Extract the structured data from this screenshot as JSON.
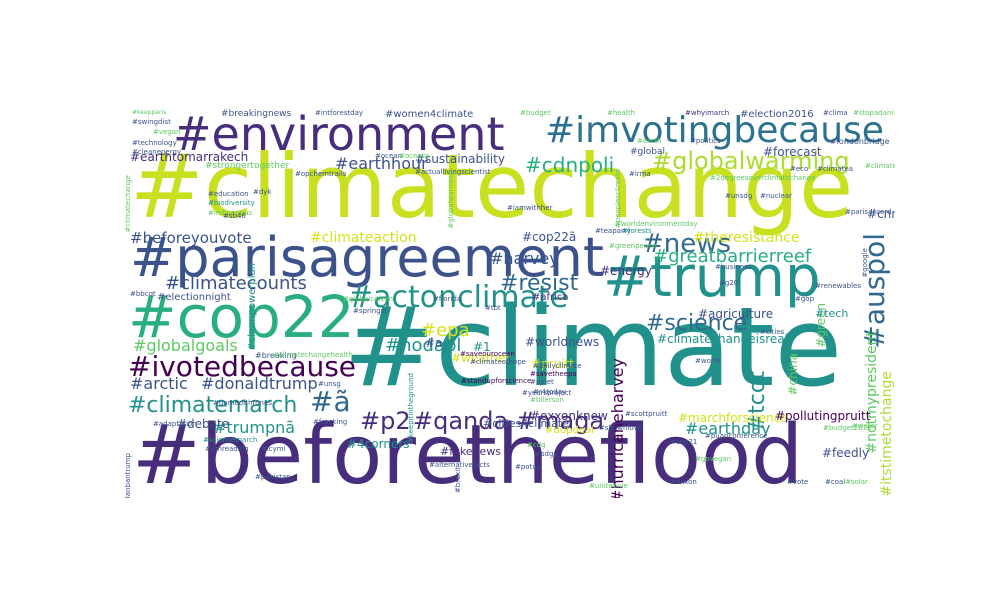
{
  "palette": {
    "purple": "#440154",
    "indigo": "#472d7b",
    "blue": "#3b528b",
    "steel": "#2c728e",
    "teal": "#21918c",
    "green": "#28ae80",
    "lime": "#5ec962",
    "yellowgreen": "#addc30",
    "yellow": "#d4e21a"
  },
  "words": [
    {
      "text": "#beforetheflood",
      "color": "#472d7b"
    },
    {
      "text": "#climate",
      "color": "#21918c"
    },
    {
      "text": "#climatechange",
      "color": "#c8e020"
    },
    {
      "text": "#parisagreement",
      "color": "#3b528b"
    },
    {
      "text": "#environment",
      "color": "#472d7b"
    },
    {
      "text": "#imvotingbecause",
      "color": "#2c728e"
    },
    {
      "text": "#trump",
      "color": "#21918c"
    },
    {
      "text": "#cop22",
      "color": "#28ae80"
    },
    {
      "text": "#globalwarming",
      "color": "#addc30"
    },
    {
      "text": "#actonclimate",
      "color": "#21918c"
    },
    {
      "text": "#ivotedbecause",
      "color": "#440154"
    },
    {
      "text": "#climatemarch",
      "color": "#21918c"
    },
    {
      "text": "#news",
      "color": "#31688e"
    },
    {
      "text": "#science",
      "color": "#31688e"
    },
    {
      "text": "#auspol",
      "color": "#31688e"
    },
    {
      "text": "#qanda",
      "color": "#472d7b"
    },
    {
      "text": "#maga",
      "color": "#472d7b"
    },
    {
      "text": "#p2",
      "color": "#472d7b"
    },
    {
      "text": "#tcot",
      "color": "#21918c"
    },
    {
      "text": "#ã",
      "color": "#31688e"
    },
    {
      "text": "#resist",
      "color": "#31688e"
    },
    {
      "text": "#climatecounts",
      "color": "#3b528b"
    },
    {
      "text": "#cdnpoli",
      "color": "#28ae80"
    },
    {
      "text": "#earthhour",
      "color": "#3b528b"
    },
    {
      "text": "#greatbarrierreef",
      "color": "#28ae80"
    },
    {
      "text": "#nodapl",
      "color": "#21918c"
    },
    {
      "text": "#globalgoals",
      "color": "#5ec962"
    },
    {
      "text": "#epa",
      "color": "#d4e21a"
    },
    {
      "text": "#earthday",
      "color": "#21918c"
    },
    {
      "text": "#hurricaneharvey",
      "color": "#440154"
    },
    {
      "text": "#arctic",
      "color": "#3b528b"
    },
    {
      "text": "#donaldtrump",
      "color": "#3b528b"
    },
    {
      "text": "#trumpnã",
      "color": "#21918c"
    },
    {
      "text": "#beforeyouvote",
      "color": "#3b528b"
    },
    {
      "text": "#climateaction",
      "color": "#d4e21a"
    },
    {
      "text": "#earthtomarrakech",
      "color": "#472d7b"
    },
    {
      "text": "#sustainability",
      "color": "#3b528b"
    },
    {
      "text": "#women4climate",
      "color": "#3b528b"
    },
    {
      "text": "#election2016",
      "color": "#3b528b"
    },
    {
      "text": "#harvey",
      "color": "#3b528b"
    },
    {
      "text": "#cop22ã",
      "color": "#3b528b"
    },
    {
      "text": "#energy",
      "color": "#472d7b"
    },
    {
      "text": "#theresistance",
      "color": "#d4e21a"
    },
    {
      "text": "#itstimetochange",
      "color": "#addc30"
    },
    {
      "text": "#notmypresident",
      "color": "#5ec962"
    },
    {
      "text": "#cnn",
      "color": "#3b528b"
    },
    {
      "text": "#forecast",
      "color": "#3b528b"
    },
    {
      "text": "#marchforscience",
      "color": "#d4e21a"
    },
    {
      "text": "#pollutingpruitt",
      "color": "#440154"
    },
    {
      "text": "#exxonknew",
      "color": "#472d7b"
    },
    {
      "text": "#climatechangeisreal",
      "color": "#21918c"
    },
    {
      "text": "#agriculture",
      "color": "#3b528b"
    },
    {
      "text": "#cities4climate",
      "color": "#3b528b"
    },
    {
      "text": "#worldnews",
      "color": "#3b528b"
    },
    {
      "text": "#fakenews",
      "color": "#472d7b"
    },
    {
      "text": "#4corners",
      "color": "#21918c"
    },
    {
      "text": "#feedly",
      "color": "#3b528b"
    },
    {
      "text": "#debate",
      "color": "#3b528b"
    },
    {
      "text": "#weather",
      "color": "#d4e21a"
    },
    {
      "text": "#china",
      "color": "#5ec962"
    },
    {
      "text": "#green",
      "color": "#5ec962"
    },
    {
      "text": "#breakingnews",
      "color": "#3b528b"
    },
    {
      "text": "#cleanpowerplan",
      "color": "#21918c"
    },
    {
      "text": "#strongertogether",
      "color": "#5ec962"
    },
    {
      "text": "#electionnight",
      "color": "#3b528b"
    },
    {
      "text": "#africa",
      "color": "#472d7b"
    },
    {
      "text": "#pruitt",
      "color": "#d4e21a"
    },
    {
      "text": "#tech",
      "color": "#21918c"
    },
    {
      "text": "#dupdeal",
      "color": "#d4e21a"
    },
    {
      "text": "#1",
      "color": "#21918c"
    },
    {
      "text": "#a",
      "color": "#3b528b"
    },
    {
      "text": "#intforestday",
      "color": "#3b528b"
    },
    {
      "text": "#whyimarch",
      "color": "#472d7b"
    },
    {
      "text": "#londonbridge",
      "color": "#3b528b"
    },
    {
      "text": "#clima",
      "color": "#3b528b"
    },
    {
      "text": "#stopadani",
      "color": "#5ec962"
    },
    {
      "text": "#keepparis",
      "color": "#5ec962"
    },
    {
      "text": "#swingdist",
      "color": "#3b528b"
    },
    {
      "text": "#vegan",
      "color": "#5ec962"
    },
    {
      "text": "#technology",
      "color": "#3b528b"
    },
    {
      "text": "#cleanenergy",
      "color": "#3b528b"
    },
    {
      "text": "#education",
      "color": "#3b528b"
    },
    {
      "text": "#biodiversity",
      "color": "#21918c"
    },
    {
      "text": "#indigenous",
      "color": "#5ec962"
    },
    {
      "text": "#sb46",
      "color": "#3b528b"
    },
    {
      "text": "#opchemtrails",
      "color": "#3b528b"
    },
    {
      "text": "#actuallivingscientist",
      "color": "#3b528b"
    },
    {
      "text": "#iamwithher",
      "color": "#3b528b"
    },
    {
      "text": "#savetheepa",
      "color": "#440154"
    },
    {
      "text": "#standupforscience",
      "color": "#440154"
    },
    {
      "text": "#climateofhope",
      "color": "#3b528b"
    },
    {
      "text": "#pjnet",
      "color": "#3b528b"
    },
    {
      "text": "#r4today",
      "color": "#3b528b"
    },
    {
      "text": "#tillerson",
      "color": "#5ec962"
    },
    {
      "text": "#dailyclimate",
      "color": "#3b528b"
    },
    {
      "text": "#saveourocean",
      "color": "#440154"
    },
    {
      "text": "#springst",
      "color": "#3b528b"
    },
    {
      "text": "#florida",
      "color": "#3b528b"
    },
    {
      "text": "#globalcitizen",
      "color": "#5ec962"
    },
    {
      "text": "#teaparty",
      "color": "#3b528b"
    },
    {
      "text": "#business",
      "color": "#3b528b"
    },
    {
      "text": "#worldenvironmentday",
      "color": "#5ec962"
    },
    {
      "text": "#gop",
      "color": "#3b528b"
    },
    {
      "text": "#cities",
      "color": "#3b528b"
    },
    {
      "text": "#scottpruitt",
      "color": "#3b528b"
    },
    {
      "text": "#cop21",
      "color": "#3b528b"
    },
    {
      "text": "#govegan",
      "color": "#5ec962"
    },
    {
      "text": "#exxon",
      "color": "#3b528b"
    },
    {
      "text": "#unitebiue",
      "color": "#5ec962"
    },
    {
      "text": "#potus",
      "color": "#3b528b"
    },
    {
      "text": "#sdgs",
      "color": "#3b528b"
    },
    {
      "text": "#cdg",
      "color": "#5ec962"
    },
    {
      "text": "#shownlove",
      "color": "#3b528b"
    },
    {
      "text": "#puanconference",
      "color": "#3b528b"
    },
    {
      "text": "#budget2018",
      "color": "#5ec962"
    },
    {
      "text": "#gameofthrones",
      "color": "#3b528b"
    },
    {
      "text": "#sciencemarch",
      "color": "#21918c"
    },
    {
      "text": "#adaptation",
      "color": "#3b528b"
    },
    {
      "text": "#amreading",
      "color": "#3b528b"
    },
    {
      "text": "#icymi",
      "color": "#3b528b"
    },
    {
      "text": "#fracking",
      "color": "#3b528b"
    },
    {
      "text": "#pakistan",
      "color": "#3b528b"
    },
    {
      "text": "#alternativefacts",
      "color": "#3b528b"
    },
    {
      "text": "#unsg",
      "color": "#3b528b"
    },
    {
      "text": "#yearsproject",
      "color": "#3b528b"
    },
    {
      "text": "#breaking",
      "color": "#3b528b"
    },
    {
      "text": "#climatechangehealth",
      "color": "#5ec962"
    },
    {
      "text": "#bbcqt",
      "color": "#3b528b"
    },
    {
      "text": "#google",
      "color": "#3b528b"
    },
    {
      "text": "#ocean",
      "color": "#3b528b"
    },
    {
      "text": "#oceans",
      "color": "#5ec962"
    },
    {
      "text": "#tbt",
      "color": "#3b528b"
    },
    {
      "text": "#budget",
      "color": "#5ec962"
    },
    {
      "text": "#health",
      "color": "#5ec962"
    },
    {
      "text": "#politics",
      "color": "#3b528b"
    },
    {
      "text": "#earth",
      "color": "#5ec962"
    },
    {
      "text": "#global",
      "color": "#3b528b"
    },
    {
      "text": "#eco",
      "color": "#3b528b"
    },
    {
      "text": "#climatea",
      "color": "#3b528b"
    },
    {
      "text": "#irma",
      "color": "#3b528b"
    },
    {
      "text": "#peoplesclimate",
      "color": "#5ec962"
    },
    {
      "text": "#forests",
      "color": "#21918c"
    },
    {
      "text": "#greenpeace",
      "color": "#5ec962"
    },
    {
      "text": "#g20",
      "color": "#3b528b"
    },
    {
      "text": "#world",
      "color": "#3b528b"
    },
    {
      "text": "#parisaccord",
      "color": "#3b528b"
    },
    {
      "text": "#brexit",
      "color": "#3b528b"
    },
    {
      "text": "#ramadanbantrump",
      "color": "#3b528b"
    },
    {
      "text": "#dyk",
      "color": "#3b528b"
    },
    {
      "text": "#keepitintheground",
      "color": "#21918c"
    },
    {
      "text": "#globalwarming",
      "color": "#5ec962"
    },
    {
      "text": "#2degreesoverclimatechange",
      "color": "#5ec962"
    },
    {
      "text": "#climate",
      "color": "#5ec962"
    },
    {
      "text": "#climatechange",
      "color": "#5ec962"
    },
    {
      "text": "#vote",
      "color": "#3b528b"
    },
    {
      "text": "#unsdg",
      "color": "#3b528b"
    },
    {
      "text": "#nuclear",
      "color": "#3b528b"
    },
    {
      "text": "#coal",
      "color": "#3b528b"
    },
    {
      "text": "#solar",
      "color": "#5ec962"
    },
    {
      "text": "#renewables",
      "color": "#3b528b"
    },
    {
      "text": "#water",
      "color": "#5ec962"
    }
  ]
}
